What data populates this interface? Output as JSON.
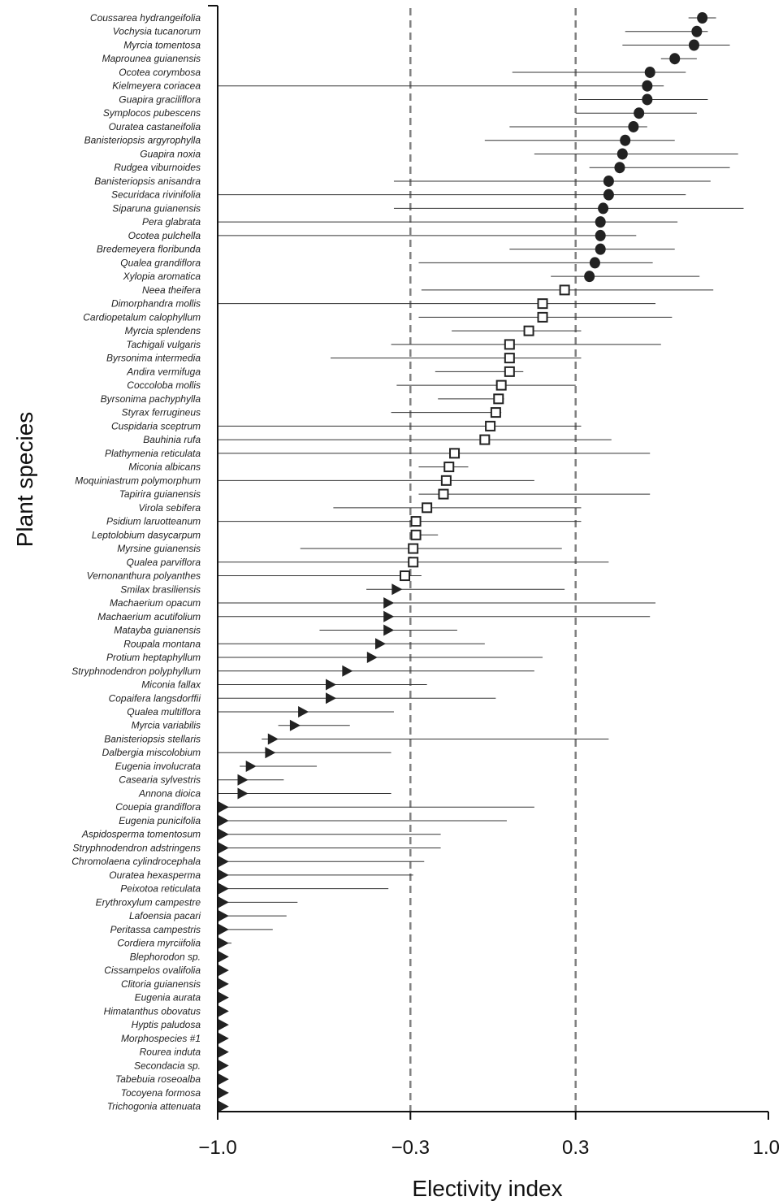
{
  "chart_data": {
    "type": "scatter",
    "xlabel": "Electivity index",
    "ylabel": "Plant species",
    "xlim": [
      -1.0,
      1.0
    ],
    "xticks": [
      -1.0,
      -0.3,
      0.3,
      1.0
    ],
    "xtick_labels": [
      "−1.0",
      "−0.3",
      "0.3",
      "1.0"
    ],
    "reference_lines": [
      -0.3,
      0.3
    ],
    "grid": false,
    "legend": "none",
    "colors": {
      "marker": "#222222",
      "reference": "#808080",
      "axis": "#111111"
    },
    "species": [
      {
        "name": "Coussarea hydrangeifolia",
        "value": 0.76,
        "low": 0.71,
        "high": 0.81,
        "marker": "circle"
      },
      {
        "name": "Vochysia tucanorum",
        "value": 0.74,
        "low": 0.48,
        "high": 0.78,
        "marker": "circle"
      },
      {
        "name": "Myrcia tomentosa",
        "value": 0.73,
        "low": 0.47,
        "high": 0.86,
        "marker": "circle"
      },
      {
        "name": "Maprounea guianensis",
        "value": 0.66,
        "low": 0.61,
        "high": 0.74,
        "marker": "circle"
      },
      {
        "name": "Ocotea corymbosa",
        "value": 0.57,
        "low": 0.07,
        "high": 0.7,
        "marker": "circle"
      },
      {
        "name": "Kielmeyera coriacea",
        "value": 0.56,
        "low": -1.0,
        "high": 0.62,
        "marker": "circle"
      },
      {
        "name": "Guapira graciliflora",
        "value": 0.56,
        "low": 0.31,
        "high": 0.78,
        "marker": "circle"
      },
      {
        "name": "Symplocos pubescens",
        "value": 0.53,
        "low": 0.3,
        "high": 0.74,
        "marker": "circle"
      },
      {
        "name": "Ouratea castaneifolia",
        "value": 0.51,
        "low": 0.06,
        "high": 0.56,
        "marker": "circle"
      },
      {
        "name": "Banisteriopsis argyrophylla",
        "value": 0.48,
        "low": -0.03,
        "high": 0.66,
        "marker": "circle"
      },
      {
        "name": "Guapira noxia",
        "value": 0.47,
        "low": 0.15,
        "high": 0.89,
        "marker": "circle"
      },
      {
        "name": "Rudgea viburnoides",
        "value": 0.46,
        "low": 0.35,
        "high": 0.86,
        "marker": "circle"
      },
      {
        "name": "Banisteriopsis anisandra",
        "value": 0.42,
        "low": -0.36,
        "high": 0.79,
        "marker": "circle"
      },
      {
        "name": "Securidaca rivinifolia",
        "value": 0.42,
        "low": -1.0,
        "high": 0.7,
        "marker": "circle"
      },
      {
        "name": "Siparuna guianensis",
        "value": 0.4,
        "low": -0.36,
        "high": 0.91,
        "marker": "circle"
      },
      {
        "name": "Pera glabrata",
        "value": 0.39,
        "low": -1.0,
        "high": 0.67,
        "marker": "circle"
      },
      {
        "name": "Ocotea pulchella",
        "value": 0.39,
        "low": -1.0,
        "high": 0.52,
        "marker": "circle"
      },
      {
        "name": "Bredemeyera floribunda",
        "value": 0.39,
        "low": 0.06,
        "high": 0.66,
        "marker": "circle"
      },
      {
        "name": "Qualea grandiflora",
        "value": 0.37,
        "low": -0.27,
        "high": 0.58,
        "marker": "circle"
      },
      {
        "name": "Xylopia aromatica",
        "value": 0.35,
        "low": 0.21,
        "high": 0.75,
        "marker": "circle"
      },
      {
        "name": "Neea theifera",
        "value": 0.26,
        "low": -0.26,
        "high": 0.8,
        "marker": "square"
      },
      {
        "name": "Dimorphandra mollis",
        "value": 0.18,
        "low": -1.0,
        "high": 0.59,
        "marker": "square"
      },
      {
        "name": "Cardiopetalum calophyllum",
        "value": 0.18,
        "low": -0.27,
        "high": 0.65,
        "marker": "square"
      },
      {
        "name": "Myrcia splendens",
        "value": 0.13,
        "low": -0.15,
        "high": 0.32,
        "marker": "square"
      },
      {
        "name": "Tachigali vulgaris",
        "value": 0.06,
        "low": -0.37,
        "high": 0.61,
        "marker": "square"
      },
      {
        "name": "Byrsonima intermedia",
        "value": 0.06,
        "low": -0.59,
        "high": 0.32,
        "marker": "square"
      },
      {
        "name": "Andira vermifuga",
        "value": 0.06,
        "low": -0.21,
        "high": 0.11,
        "marker": "square"
      },
      {
        "name": "Coccoloba mollis",
        "value": 0.03,
        "low": -0.35,
        "high": 0.3,
        "marker": "square"
      },
      {
        "name": "Byrsonima pachyphylla",
        "value": 0.02,
        "low": -0.2,
        "high": 0.04,
        "marker": "square"
      },
      {
        "name": "Styrax ferrugineus",
        "value": 0.01,
        "low": -0.37,
        "high": 0.03,
        "marker": "square"
      },
      {
        "name": "Cuspidaria sceptrum",
        "value": -0.01,
        "low": -1.0,
        "high": 0.32,
        "marker": "square"
      },
      {
        "name": "Bauhinia rufa",
        "value": -0.03,
        "low": -1.0,
        "high": 0.43,
        "marker": "square"
      },
      {
        "name": "Plathymenia reticulata",
        "value": -0.14,
        "low": -1.0,
        "high": 0.57,
        "marker": "square"
      },
      {
        "name": "Miconia albicans",
        "value": -0.16,
        "low": -0.27,
        "high": -0.09,
        "marker": "square"
      },
      {
        "name": "Moquiniastrum polymorphum",
        "value": -0.17,
        "low": -1.0,
        "high": 0.15,
        "marker": "square"
      },
      {
        "name": "Tapirira guianensis",
        "value": -0.18,
        "low": -0.27,
        "high": 0.57,
        "marker": "square"
      },
      {
        "name": "Virola sebifera",
        "value": -0.24,
        "low": -0.58,
        "high": 0.32,
        "marker": "square"
      },
      {
        "name": "Psidium laruotteanum",
        "value": -0.28,
        "low": -1.0,
        "high": 0.32,
        "marker": "square"
      },
      {
        "name": "Leptolobium dasycarpum",
        "value": -0.28,
        "low": -0.3,
        "high": -0.2,
        "marker": "square"
      },
      {
        "name": "Myrsine guianensis",
        "value": -0.29,
        "low": -0.7,
        "high": 0.25,
        "marker": "square"
      },
      {
        "name": "Qualea parviflora",
        "value": -0.29,
        "low": -1.0,
        "high": 0.42,
        "marker": "square"
      },
      {
        "name": "Vernonanthura polyanthes",
        "value": -0.32,
        "low": -1.0,
        "high": -0.26,
        "marker": "square"
      },
      {
        "name": "Smilax brasiliensis",
        "value": -0.35,
        "low": -0.46,
        "high": 0.26,
        "marker": "triangle"
      },
      {
        "name": "Machaerium opacum",
        "value": -0.38,
        "low": -1.0,
        "high": 0.59,
        "marker": "triangle"
      },
      {
        "name": "Machaerium acutifolium",
        "value": -0.38,
        "low": -1.0,
        "high": 0.57,
        "marker": "triangle"
      },
      {
        "name": "Matayba guianensis",
        "value": -0.38,
        "low": -0.63,
        "high": -0.13,
        "marker": "triangle"
      },
      {
        "name": "Roupala montana",
        "value": -0.41,
        "low": -1.0,
        "high": -0.03,
        "marker": "triangle"
      },
      {
        "name": "Protium heptaphyllum",
        "value": -0.44,
        "low": -1.0,
        "high": 0.18,
        "marker": "triangle"
      },
      {
        "name": "Stryphnodendron polyphyllum",
        "value": -0.53,
        "low": -1.0,
        "high": 0.15,
        "marker": "triangle"
      },
      {
        "name": "Miconia fallax",
        "value": -0.59,
        "low": -1.0,
        "high": -0.24,
        "marker": "triangle"
      },
      {
        "name": "Copaifera langsdorffii",
        "value": -0.59,
        "low": -1.0,
        "high": 0.01,
        "marker": "triangle"
      },
      {
        "name": "Qualea multiflora",
        "value": -0.69,
        "low": -1.0,
        "high": -0.36,
        "marker": "triangle"
      },
      {
        "name": "Myrcia variabilis",
        "value": -0.72,
        "low": -0.78,
        "high": -0.52,
        "marker": "triangle"
      },
      {
        "name": "Banisteriopsis stellaris",
        "value": -0.8,
        "low": -0.84,
        "high": 0.42,
        "marker": "triangle"
      },
      {
        "name": "Dalbergia miscolobium",
        "value": -0.81,
        "low": -1.0,
        "high": -0.37,
        "marker": "triangle"
      },
      {
        "name": "Eugenia involucrata",
        "value": -0.88,
        "low": -0.92,
        "high": -0.64,
        "marker": "triangle"
      },
      {
        "name": "Casearia sylvestris",
        "value": -0.91,
        "low": -1.0,
        "high": -0.76,
        "marker": "triangle"
      },
      {
        "name": "Annona dioica",
        "value": -0.91,
        "low": -1.0,
        "high": -0.37,
        "marker": "triangle"
      },
      {
        "name": "Couepia grandiflora",
        "value": -0.98,
        "low": -1.0,
        "high": 0.15,
        "marker": "triangle"
      },
      {
        "name": "Eugenia punicifolia",
        "value": -0.98,
        "low": -1.0,
        "high": 0.05,
        "marker": "triangle"
      },
      {
        "name": "Aspidosperma tomentosum",
        "value": -0.98,
        "low": -1.0,
        "high": -0.19,
        "marker": "triangle"
      },
      {
        "name": "Stryphnodendron adstringens",
        "value": -0.98,
        "low": -1.0,
        "high": -0.19,
        "marker": "triangle"
      },
      {
        "name": "Chromolaena cylindrocephala",
        "value": -0.98,
        "low": -1.0,
        "high": -0.25,
        "marker": "triangle"
      },
      {
        "name": "Ouratea hexasperma",
        "value": -0.98,
        "low": -1.0,
        "high": -0.29,
        "marker": "triangle"
      },
      {
        "name": "Peixotoa reticulata",
        "value": -0.98,
        "low": -1.0,
        "high": -0.38,
        "marker": "triangle"
      },
      {
        "name": "Erythroxylum campestre",
        "value": -0.98,
        "low": -1.0,
        "high": -0.71,
        "marker": "triangle"
      },
      {
        "name": "Lafoensia pacari",
        "value": -0.98,
        "low": -1.0,
        "high": -0.75,
        "marker": "triangle"
      },
      {
        "name": "Peritassa campestris",
        "value": -0.98,
        "low": -1.0,
        "high": -0.8,
        "marker": "triangle"
      },
      {
        "name": "Cordiera myrciifolia",
        "value": -0.98,
        "low": -1.0,
        "high": -0.95,
        "marker": "triangle"
      },
      {
        "name": "Blephorodon sp.",
        "value": -0.98,
        "low": -1.0,
        "high": -0.98,
        "marker": "triangle"
      },
      {
        "name": "Cissampelos ovalifolia",
        "value": -0.98,
        "low": -1.0,
        "high": -0.98,
        "marker": "triangle"
      },
      {
        "name": "Clitoria guianensis",
        "value": -0.98,
        "low": -1.0,
        "high": -0.98,
        "marker": "triangle"
      },
      {
        "name": "Eugenia aurata",
        "value": -0.98,
        "low": -1.0,
        "high": -0.98,
        "marker": "triangle"
      },
      {
        "name": "Himatanthus obovatus",
        "value": -0.98,
        "low": -1.0,
        "high": -0.98,
        "marker": "triangle"
      },
      {
        "name": "Hyptis paludosa",
        "value": -0.98,
        "low": -1.0,
        "high": -0.98,
        "marker": "triangle"
      },
      {
        "name": "Morphospecies #1",
        "value": -0.98,
        "low": -1.0,
        "high": -0.98,
        "marker": "triangle"
      },
      {
        "name": "Rourea induta",
        "value": -0.98,
        "low": -1.0,
        "high": -0.98,
        "marker": "triangle"
      },
      {
        "name": "Secondacia sp.",
        "value": -0.98,
        "low": -1.0,
        "high": -0.98,
        "marker": "triangle"
      },
      {
        "name": "Tabebuia roseoalba",
        "value": -0.98,
        "low": -1.0,
        "high": -0.98,
        "marker": "triangle"
      },
      {
        "name": "Tocoyena formosa",
        "value": -0.98,
        "low": -1.0,
        "high": -0.98,
        "marker": "triangle"
      },
      {
        "name": "Trichogonia attenuata",
        "value": -0.98,
        "low": -1.0,
        "high": -0.98,
        "marker": "triangle"
      }
    ]
  }
}
